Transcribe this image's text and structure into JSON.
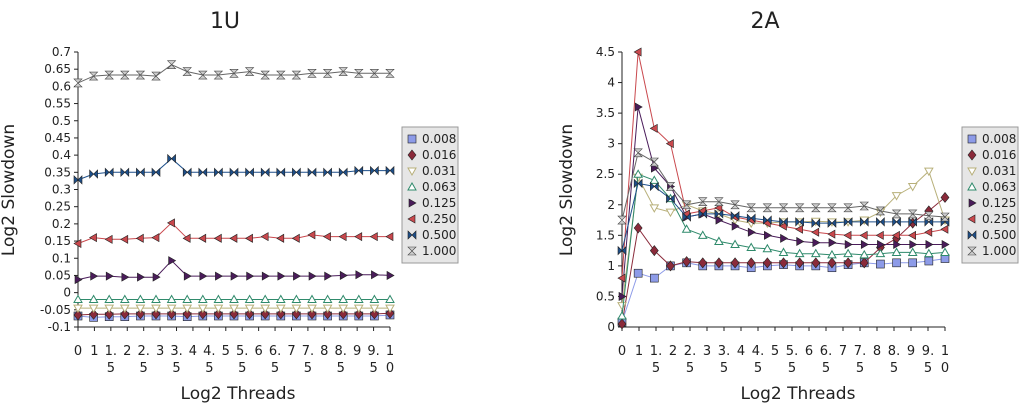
{
  "chart_data": [
    {
      "type": "line",
      "title": "1U",
      "xlabel": "Log2 Threads",
      "ylabel": "Log2 Slowdown",
      "ylim": [
        -0.1,
        0.7
      ],
      "yticks": [
        "-0.1",
        "-0.05",
        "0",
        "0.05",
        "0.1",
        "0.15",
        "0.2",
        "0.25",
        "0.3",
        "0.35",
        "0.4",
        "0.45",
        "0.5",
        "0.55",
        "0.6",
        "0.65",
        "0.7"
      ],
      "xticks": [
        [
          "0"
        ],
        [
          "1"
        ],
        [
          "1.",
          "5"
        ],
        [
          "2"
        ],
        [
          "2.",
          "5"
        ],
        [
          "3"
        ],
        [
          "3.",
          "5"
        ],
        [
          "4"
        ],
        [
          "4.",
          "5"
        ],
        [
          "5"
        ],
        [
          "5.",
          "5"
        ],
        [
          "6"
        ],
        [
          "6.",
          "5"
        ],
        [
          "7"
        ],
        [
          "7.",
          "5"
        ],
        [
          "8"
        ],
        [
          "8.",
          "5"
        ],
        [
          "9"
        ],
        [
          "9.",
          "5"
        ],
        [
          "1",
          "0"
        ]
      ],
      "x": [
        0,
        0.5,
        1,
        1.5,
        2,
        2.5,
        3,
        3.5,
        4,
        4.5,
        5,
        5.5,
        6,
        6.5,
        7,
        7.5,
        8,
        8.5,
        9,
        9.5,
        10
      ],
      "legend_position": "right",
      "series": [
        {
          "name": "0.008",
          "color": "#8d9be8",
          "marker": "square",
          "values": [
            -0.068,
            -0.072,
            -0.07,
            -0.07,
            -0.068,
            -0.068,
            -0.068,
            -0.07,
            -0.068,
            -0.068,
            -0.068,
            -0.068,
            -0.068,
            -0.068,
            -0.068,
            -0.068,
            -0.068,
            -0.068,
            -0.068,
            -0.068,
            -0.065
          ]
        },
        {
          "name": "0.016",
          "color": "#8a2a3a",
          "marker": "diamond",
          "values": [
            -0.065,
            -0.063,
            -0.063,
            -0.062,
            -0.062,
            -0.062,
            -0.062,
            -0.062,
            -0.062,
            -0.062,
            -0.062,
            -0.062,
            -0.062,
            -0.062,
            -0.062,
            -0.062,
            -0.062,
            -0.062,
            -0.062,
            -0.062,
            -0.06
          ]
        },
        {
          "name": "0.031",
          "color": "#b8b07a",
          "marker": "triangle-down",
          "values": [
            -0.045,
            -0.045,
            -0.045,
            -0.045,
            -0.045,
            -0.045,
            -0.045,
            -0.045,
            -0.045,
            -0.045,
            -0.045,
            -0.045,
            -0.045,
            -0.045,
            -0.045,
            -0.045,
            -0.045,
            -0.045,
            -0.045,
            -0.045,
            -0.045
          ]
        },
        {
          "name": "0.063",
          "color": "#2f8a6b",
          "marker": "triangle-up",
          "values": [
            -0.02,
            -0.02,
            -0.02,
            -0.02,
            -0.02,
            -0.02,
            -0.02,
            -0.02,
            -0.02,
            -0.02,
            -0.02,
            -0.02,
            -0.02,
            -0.02,
            -0.02,
            -0.02,
            -0.02,
            -0.02,
            -0.02,
            -0.02,
            -0.02
          ]
        },
        {
          "name": "0.125",
          "color": "#4a1c5a",
          "marker": "triangle-right",
          "values": [
            0.038,
            0.048,
            0.048,
            0.045,
            0.045,
            0.045,
            0.093,
            0.048,
            0.048,
            0.048,
            0.048,
            0.048,
            0.048,
            0.048,
            0.048,
            0.048,
            0.048,
            0.05,
            0.052,
            0.052,
            0.05
          ]
        },
        {
          "name": "0.250",
          "color": "#c9484d",
          "marker": "triangle-left",
          "values": [
            0.143,
            0.16,
            0.155,
            0.155,
            0.158,
            0.16,
            0.203,
            0.158,
            0.158,
            0.158,
            0.158,
            0.158,
            0.163,
            0.158,
            0.158,
            0.168,
            0.163,
            0.163,
            0.163,
            0.163,
            0.163
          ]
        },
        {
          "name": "0.500",
          "color": "#1d4f8a",
          "marker": "bowtie",
          "values": [
            0.328,
            0.345,
            0.35,
            0.35,
            0.35,
            0.35,
            0.39,
            0.35,
            0.35,
            0.35,
            0.35,
            0.35,
            0.35,
            0.35,
            0.35,
            0.35,
            0.35,
            0.35,
            0.355,
            0.355,
            0.355
          ]
        },
        {
          "name": "1.000",
          "color": "#666666",
          "marker": "hourglass",
          "values": [
            0.61,
            0.63,
            0.633,
            0.633,
            0.633,
            0.63,
            0.663,
            0.643,
            0.633,
            0.633,
            0.638,
            0.643,
            0.633,
            0.633,
            0.633,
            0.638,
            0.638,
            0.643,
            0.638,
            0.638,
            0.638
          ]
        }
      ]
    },
    {
      "type": "line",
      "title": "2A",
      "xlabel": "Log2 Threads",
      "ylabel": "Log2 Slowdown",
      "ylim": [
        0,
        4.5
      ],
      "yticks": [
        "0",
        "0.5",
        "1",
        "1.5",
        "2",
        "2.5",
        "3",
        "3.5",
        "4",
        "4.5"
      ],
      "xticks": [
        [
          "0"
        ],
        [
          "1"
        ],
        [
          "1.",
          "5"
        ],
        [
          "2"
        ],
        [
          "2.",
          "5"
        ],
        [
          "3"
        ],
        [
          "3.",
          "5"
        ],
        [
          "4"
        ],
        [
          "4.",
          "5"
        ],
        [
          "5"
        ],
        [
          "5.",
          "5"
        ],
        [
          "6"
        ],
        [
          "6.",
          "5"
        ],
        [
          "7"
        ],
        [
          "7.",
          "5"
        ],
        [
          "8"
        ],
        [
          "8.",
          "5"
        ],
        [
          "9"
        ],
        [
          "9.",
          "5"
        ],
        [
          "1",
          "0"
        ]
      ],
      "x": [
        0,
        0.5,
        1,
        1.5,
        2,
        2.5,
        3,
        3.5,
        4,
        4.5,
        5,
        5.5,
        6,
        6.5,
        7,
        7.5,
        8,
        8.5,
        9,
        9.5,
        10
      ],
      "legend_position": "right",
      "series": [
        {
          "name": "0.008",
          "color": "#8d9be8",
          "marker": "square",
          "values": [
            0.08,
            0.88,
            0.8,
            1.0,
            1.05,
            1.0,
            1.0,
            1.0,
            0.97,
            1.0,
            1.02,
            1.0,
            1.0,
            0.97,
            1.02,
            1.05,
            1.03,
            1.05,
            1.05,
            1.08,
            1.12
          ]
        },
        {
          "name": "0.016",
          "color": "#8a2a3a",
          "marker": "diamond",
          "values": [
            0.05,
            1.62,
            1.25,
            1.0,
            1.07,
            1.05,
            1.05,
            1.05,
            1.05,
            1.05,
            1.05,
            1.05,
            1.05,
            1.05,
            1.05,
            1.05,
            1.3,
            1.45,
            1.7,
            1.9,
            2.12
          ]
        },
        {
          "name": "0.031",
          "color": "#b8b07a",
          "marker": "triangle-down",
          "values": [
            0.35,
            2.45,
            1.95,
            1.88,
            2.0,
            1.9,
            1.85,
            1.75,
            1.7,
            1.7,
            1.72,
            1.72,
            1.73,
            1.72,
            1.72,
            1.75,
            1.88,
            2.15,
            2.3,
            2.55,
            1.75
          ]
        },
        {
          "name": "0.063",
          "color": "#2f8a6b",
          "marker": "triangle-up",
          "values": [
            0.18,
            2.5,
            2.4,
            2.1,
            1.6,
            1.5,
            1.4,
            1.35,
            1.3,
            1.28,
            1.22,
            1.2,
            1.2,
            1.18,
            1.2,
            1.18,
            1.2,
            1.22,
            1.22,
            1.2,
            1.22
          ]
        },
        {
          "name": "0.125",
          "color": "#4a1c5a",
          "marker": "triangle-right",
          "values": [
            0.5,
            3.6,
            2.6,
            2.3,
            1.8,
            1.85,
            1.75,
            1.65,
            1.55,
            1.5,
            1.45,
            1.4,
            1.38,
            1.38,
            1.35,
            1.35,
            1.35,
            1.35,
            1.35,
            1.35,
            1.35
          ]
        },
        {
          "name": "0.250",
          "color": "#c9484d",
          "marker": "triangle-left",
          "values": [
            0.8,
            4.5,
            3.25,
            3.0,
            1.85,
            1.9,
            1.95,
            1.8,
            1.75,
            1.7,
            1.65,
            1.6,
            1.55,
            1.52,
            1.5,
            1.5,
            1.5,
            1.5,
            1.5,
            1.55,
            1.6
          ]
        },
        {
          "name": "0.500",
          "color": "#1d4f8a",
          "marker": "bowtie",
          "values": [
            1.25,
            2.35,
            2.3,
            2.1,
            1.8,
            1.85,
            1.85,
            1.82,
            1.78,
            1.75,
            1.72,
            1.72,
            1.7,
            1.7,
            1.72,
            1.72,
            1.72,
            1.72,
            1.72,
            1.72,
            1.72
          ]
        },
        {
          "name": "1.000",
          "color": "#666666",
          "marker": "hourglass",
          "values": [
            1.75,
            2.85,
            2.7,
            2.3,
            2.0,
            2.05,
            2.05,
            2.0,
            1.95,
            1.95,
            1.95,
            1.95,
            1.95,
            1.95,
            1.95,
            1.98,
            1.9,
            1.85,
            1.85,
            1.82,
            1.8
          ]
        }
      ]
    }
  ]
}
